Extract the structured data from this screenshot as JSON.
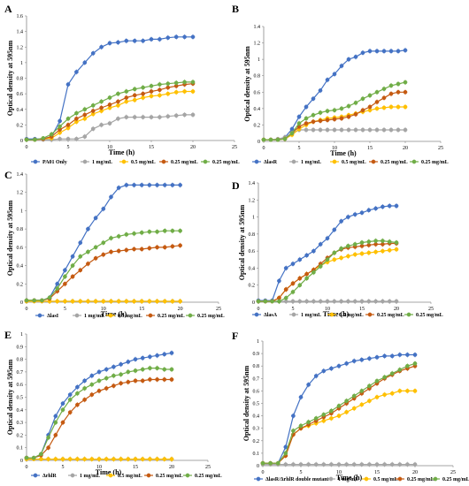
{
  "chart_data": [
    {
      "panel": "A",
      "type": "line",
      "xlabel": "Time (h)",
      "ylabel": "Optical density at 595nm",
      "xlim": [
        0,
        25
      ],
      "ylim": [
        0,
        1.6
      ],
      "xticks": [
        "0",
        "5",
        "10",
        "15",
        "20",
        "25"
      ],
      "yticks": [
        "0",
        "0.2",
        "0.4",
        "0.6",
        "0.8",
        "1",
        "1.2",
        "1.4",
        "1.6"
      ],
      "x": [
        0,
        1,
        2,
        3,
        4,
        5,
        6,
        7,
        8,
        9,
        10,
        11,
        12,
        13,
        14,
        15,
        16,
        17,
        18,
        19,
        20
      ],
      "series": [
        {
          "name": "PA01 Only",
          "color": "#4472c4",
          "values": [
            0.02,
            0.02,
            0.02,
            0.05,
            0.25,
            0.72,
            0.88,
            1.0,
            1.12,
            1.2,
            1.25,
            1.26,
            1.28,
            1.28,
            1.28,
            1.3,
            1.3,
            1.32,
            1.33,
            1.33,
            1.33
          ]
        },
        {
          "name": "1 mg/mL",
          "color": "#a5a5a5",
          "values": [
            0.01,
            0.01,
            0.01,
            0.01,
            0.02,
            0.02,
            0.02,
            0.05,
            0.15,
            0.2,
            0.22,
            0.28,
            0.3,
            0.3,
            0.3,
            0.3,
            0.3,
            0.31,
            0.32,
            0.33,
            0.33
          ]
        },
        {
          "name": "0.5 mg/mL",
          "color": "#ffc000",
          "values": [
            0.01,
            0.01,
            0.02,
            0.03,
            0.1,
            0.16,
            0.24,
            0.28,
            0.34,
            0.38,
            0.42,
            0.45,
            0.5,
            0.52,
            0.55,
            0.57,
            0.58,
            0.6,
            0.62,
            0.63,
            0.63
          ]
        },
        {
          "name": "0.25 mg/mL",
          "color": "#c55a11",
          "values": [
            0.01,
            0.01,
            0.02,
            0.05,
            0.14,
            0.2,
            0.28,
            0.33,
            0.38,
            0.42,
            0.46,
            0.5,
            0.55,
            0.58,
            0.6,
            0.63,
            0.65,
            0.68,
            0.7,
            0.72,
            0.73
          ]
        },
        {
          "name": "0.25 mg/mL",
          "color": "#70ad47",
          "values": [
            0.01,
            0.01,
            0.03,
            0.08,
            0.18,
            0.28,
            0.35,
            0.4,
            0.45,
            0.5,
            0.55,
            0.6,
            0.63,
            0.66,
            0.68,
            0.7,
            0.72,
            0.73,
            0.74,
            0.75,
            0.75
          ]
        }
      ]
    },
    {
      "panel": "B",
      "type": "line",
      "xlabel": "Time (h)",
      "ylabel": "Optical density at 595nm",
      "xlim": [
        0,
        25
      ],
      "ylim": [
        0,
        1.4
      ],
      "xticks": [
        "0",
        "5",
        "10",
        "15",
        "20",
        "25"
      ],
      "yticks": [
        "0",
        "0.2",
        "0.4",
        "0.6",
        "0.8",
        "1",
        "1.2",
        "1.4"
      ],
      "x": [
        0,
        1,
        2,
        3,
        4,
        5,
        6,
        7,
        8,
        9,
        10,
        11,
        12,
        13,
        14,
        15,
        16,
        17,
        18,
        19,
        20
      ],
      "series": [
        {
          "name": "ΔlasR",
          "color": "#4472c4",
          "values": [
            0.02,
            0.02,
            0.02,
            0.05,
            0.15,
            0.3,
            0.42,
            0.52,
            0.62,
            0.75,
            0.82,
            0.92,
            1.0,
            1.03,
            1.08,
            1.1,
            1.1,
            1.1,
            1.1,
            1.1,
            1.11
          ]
        },
        {
          "name": "1 mg/mL",
          "color": "#a5a5a5",
          "values": [
            0.02,
            0.02,
            0.03,
            0.05,
            0.1,
            0.14,
            0.14,
            0.14,
            0.14,
            0.14,
            0.14,
            0.14,
            0.14,
            0.14,
            0.14,
            0.14,
            0.14,
            0.14,
            0.14,
            0.14,
            0.14
          ]
        },
        {
          "name": "0.5 mg/mL",
          "color": "#ffc000",
          "values": [
            0.02,
            0.02,
            0.02,
            0.03,
            0.08,
            0.15,
            0.2,
            0.24,
            0.26,
            0.28,
            0.29,
            0.3,
            0.32,
            0.34,
            0.36,
            0.38,
            0.4,
            0.41,
            0.42,
            0.42,
            0.42
          ]
        },
        {
          "name": "0.25 mg/mL",
          "color": "#c55a11",
          "values": [
            0.02,
            0.02,
            0.02,
            0.03,
            0.1,
            0.18,
            0.22,
            0.24,
            0.25,
            0.26,
            0.27,
            0.28,
            0.3,
            0.33,
            0.38,
            0.42,
            0.48,
            0.53,
            0.58,
            0.6,
            0.6
          ]
        },
        {
          "name": "0.25 mg/mL",
          "color": "#70ad47",
          "values": [
            0.02,
            0.02,
            0.02,
            0.03,
            0.1,
            0.22,
            0.28,
            0.32,
            0.35,
            0.37,
            0.38,
            0.4,
            0.43,
            0.47,
            0.52,
            0.56,
            0.6,
            0.64,
            0.68,
            0.7,
            0.72
          ]
        }
      ]
    },
    {
      "panel": "C",
      "type": "line",
      "xlabel": "Time (h)",
      "ylabel": "Optical density at 595nm",
      "xlim": [
        0,
        25
      ],
      "ylim": [
        0,
        1.4
      ],
      "xticks": [
        "0",
        "5",
        "10",
        "15",
        "20",
        "25"
      ],
      "yticks": [
        "0",
        "0.2",
        "0.4",
        "0.6",
        "0.8",
        "1",
        "1.2",
        "1.4"
      ],
      "x": [
        0,
        1,
        2,
        3,
        4,
        5,
        6,
        7,
        8,
        9,
        10,
        11,
        12,
        13,
        14,
        15,
        16,
        17,
        18,
        19,
        20
      ],
      "series": [
        {
          "name": "ΔlasI",
          "color": "#4472c4",
          "values": [
            0.02,
            0.02,
            0.02,
            0.05,
            0.2,
            0.35,
            0.5,
            0.65,
            0.8,
            0.92,
            1.02,
            1.15,
            1.25,
            1.28,
            1.28,
            1.28,
            1.28,
            1.28,
            1.28,
            1.28,
            1.28
          ]
        },
        {
          "name": "1 mg/mL",
          "color": "#a5a5a5",
          "values": [
            0.01,
            0.01,
            0.01,
            0.01,
            0.01,
            0.01,
            0.01,
            0.01,
            0.01,
            0.01,
            0.01,
            0.01,
            0.01,
            0.01,
            0.01,
            0.01,
            0.01,
            0.01,
            0.01,
            0.01,
            0.01
          ]
        },
        {
          "name": "0.5 mg/mL",
          "color": "#ffc000",
          "values": [
            0.01,
            0.01,
            0.01,
            0.01,
            0.01,
            0.01,
            0.01,
            0.01,
            0.01,
            0.01,
            0.01,
            0.01,
            0.01,
            0.01,
            0.01,
            0.01,
            0.01,
            0.01,
            0.01,
            0.01,
            0.01
          ]
        },
        {
          "name": "0.25 mg/mL",
          "color": "#c55a11",
          "values": [
            0.02,
            0.02,
            0.02,
            0.04,
            0.12,
            0.2,
            0.28,
            0.35,
            0.42,
            0.48,
            0.52,
            0.55,
            0.56,
            0.57,
            0.58,
            0.58,
            0.59,
            0.6,
            0.6,
            0.61,
            0.62
          ]
        },
        {
          "name": "0.25 mg/mL",
          "color": "#70ad47",
          "values": [
            0.02,
            0.02,
            0.02,
            0.05,
            0.15,
            0.28,
            0.4,
            0.5,
            0.55,
            0.6,
            0.65,
            0.7,
            0.72,
            0.74,
            0.75,
            0.76,
            0.77,
            0.77,
            0.78,
            0.78,
            0.78
          ]
        }
      ]
    },
    {
      "panel": "D",
      "type": "line",
      "xlabel": "Time (h)",
      "ylabel": "Optical density at 595nm",
      "xlim": [
        0,
        25
      ],
      "ylim": [
        0,
        1.4
      ],
      "xticks": [
        "0",
        "5",
        "10",
        "15",
        "20",
        "25"
      ],
      "yticks": [
        "0",
        "0.2",
        "0.4",
        "0.6",
        "0.8",
        "1",
        "1.2",
        "1.4"
      ],
      "x": [
        0,
        1,
        2,
        3,
        4,
        5,
        6,
        7,
        8,
        9,
        10,
        11,
        12,
        13,
        14,
        15,
        16,
        17,
        18,
        19,
        20
      ],
      "series": [
        {
          "name": "ΔlasA",
          "color": "#4472c4",
          "values": [
            0.02,
            0.02,
            0.02,
            0.25,
            0.4,
            0.45,
            0.5,
            0.55,
            0.6,
            0.68,
            0.75,
            0.85,
            0.95,
            1.0,
            1.03,
            1.05,
            1.08,
            1.1,
            1.12,
            1.13,
            1.13
          ]
        },
        {
          "name": "1 mg/mL",
          "color": "#a5a5a5",
          "values": [
            0.01,
            0.01,
            0.01,
            0.01,
            0.01,
            0.01,
            0.01,
            0.01,
            0.01,
            0.01,
            0.01,
            0.01,
            0.01,
            0.01,
            0.01,
            0.01,
            0.01,
            0.01,
            0.01,
            0.01,
            0.01
          ]
        },
        {
          "name": "0.5 mg/mL",
          "color": "#ffc000",
          "values": [
            0.01,
            0.01,
            0.01,
            0.05,
            0.15,
            0.22,
            0.28,
            0.33,
            0.38,
            0.43,
            0.47,
            0.5,
            0.52,
            0.54,
            0.56,
            0.57,
            0.58,
            0.59,
            0.6,
            0.61,
            0.62
          ]
        },
        {
          "name": "0.25 mg/mL",
          "color": "#c55a11",
          "values": [
            0.01,
            0.01,
            0.01,
            0.05,
            0.15,
            0.22,
            0.28,
            0.33,
            0.38,
            0.45,
            0.52,
            0.58,
            0.62,
            0.64,
            0.65,
            0.66,
            0.67,
            0.68,
            0.68,
            0.69,
            0.69
          ]
        },
        {
          "name": "0.25 mg/mL",
          "color": "#70ad47",
          "values": [
            0.01,
            0.01,
            0.01,
            0.01,
            0.05,
            0.12,
            0.2,
            0.28,
            0.35,
            0.42,
            0.5,
            0.58,
            0.63,
            0.66,
            0.68,
            0.7,
            0.71,
            0.72,
            0.72,
            0.71,
            0.7
          ]
        }
      ]
    },
    {
      "panel": "E",
      "type": "line",
      "xlabel": "Time (h)",
      "ylabel": "Optical density at 595nm",
      "xlim": [
        0,
        25
      ],
      "ylim": [
        0,
        1
      ],
      "xticks": [
        "0",
        "5",
        "10",
        "15",
        "20",
        "25"
      ],
      "yticks": [
        "0",
        "0.1",
        "0.2",
        "0.3",
        "0.4",
        "0.5",
        "0.6",
        "0.7",
        "0.8",
        "0.9",
        "1"
      ],
      "x": [
        0,
        1,
        2,
        3,
        4,
        5,
        6,
        7,
        8,
        9,
        10,
        11,
        12,
        13,
        14,
        15,
        16,
        17,
        18,
        19,
        20
      ],
      "series": [
        {
          "name": "ΔrhlR",
          "color": "#4472c4",
          "values": [
            0.02,
            0.02,
            0.05,
            0.2,
            0.35,
            0.45,
            0.52,
            0.58,
            0.63,
            0.67,
            0.7,
            0.72,
            0.74,
            0.76,
            0.78,
            0.8,
            0.81,
            0.82,
            0.83,
            0.84,
            0.85
          ]
        },
        {
          "name": "1 mg/mL",
          "color": "#a5a5a5",
          "values": [
            0.01,
            0.01,
            0.01,
            0.01,
            0.01,
            0.01,
            0.01,
            0.01,
            0.01,
            0.01,
            0.01,
            0.01,
            0.01,
            0.01,
            0.01,
            0.01,
            0.01,
            0.01,
            0.01,
            0.01,
            0.01
          ]
        },
        {
          "name": "0.5 mg/mL",
          "color": "#ffc000",
          "values": [
            0.01,
            0.01,
            0.01,
            0.01,
            0.01,
            0.01,
            0.01,
            0.01,
            0.01,
            0.01,
            0.01,
            0.01,
            0.01,
            0.01,
            0.01,
            0.01,
            0.01,
            0.01,
            0.01,
            0.01,
            0.01
          ]
        },
        {
          "name": "0.25 mg/mL",
          "color": "#c55a11",
          "values": [
            0.02,
            0.02,
            0.04,
            0.1,
            0.2,
            0.3,
            0.38,
            0.44,
            0.48,
            0.52,
            0.55,
            0.57,
            0.59,
            0.61,
            0.62,
            0.63,
            0.63,
            0.64,
            0.64,
            0.64,
            0.64
          ]
        },
        {
          "name": "0.25 mg/mL",
          "color": "#70ad47",
          "values": [
            0.02,
            0.02,
            0.05,
            0.18,
            0.3,
            0.4,
            0.48,
            0.53,
            0.57,
            0.6,
            0.63,
            0.65,
            0.67,
            0.68,
            0.7,
            0.71,
            0.72,
            0.73,
            0.73,
            0.72,
            0.72
          ]
        }
      ]
    },
    {
      "panel": "F",
      "type": "line",
      "xlabel": "Time (h)",
      "ylabel": "Optical density at 595nm",
      "xlim": [
        0,
        25
      ],
      "ylim": [
        0,
        1
      ],
      "xticks": [
        "0",
        "5",
        "10",
        "15",
        "20",
        "25"
      ],
      "yticks": [
        "0",
        "0.1",
        "0.2",
        "0.3",
        "0.4",
        "0.5",
        "0.6",
        "0.7",
        "0.8",
        "0.9",
        "1"
      ],
      "x": [
        0,
        1,
        2,
        3,
        4,
        5,
        6,
        7,
        8,
        9,
        10,
        11,
        12,
        13,
        14,
        15,
        16,
        17,
        18,
        19,
        20
      ],
      "series": [
        {
          "name": "ΔlasR/ΔrhlR double mutant",
          "color": "#4472c4",
          "values": [
            0.02,
            0.02,
            0.02,
            0.15,
            0.4,
            0.55,
            0.65,
            0.72,
            0.76,
            0.78,
            0.8,
            0.82,
            0.84,
            0.85,
            0.86,
            0.87,
            0.88,
            0.88,
            0.89,
            0.89,
            0.89
          ]
        },
        {
          "name": "1 mg/mL",
          "color": "#a5a5a5",
          "values": [
            0.01,
            0.01,
            0.01,
            0.01,
            0.01,
            0.01,
            0.01,
            0.01,
            0.01,
            0.01,
            0.01,
            0.01,
            0.01,
            0.01,
            0.01,
            0.01,
            0.01,
            0.01,
            0.01,
            0.01,
            0.01
          ]
        },
        {
          "name": "0.5 mg/mL",
          "color": "#ffc000",
          "values": [
            0.02,
            0.02,
            0.02,
            0.08,
            0.25,
            0.3,
            0.32,
            0.34,
            0.36,
            0.38,
            0.4,
            0.43,
            0.46,
            0.49,
            0.52,
            0.55,
            0.57,
            0.58,
            0.6,
            0.6,
            0.6
          ]
        },
        {
          "name": "0.25 mg/mL",
          "color": "#c55a11",
          "values": [
            0.02,
            0.02,
            0.02,
            0.08,
            0.25,
            0.3,
            0.33,
            0.36,
            0.39,
            0.42,
            0.46,
            0.5,
            0.54,
            0.58,
            0.62,
            0.66,
            0.7,
            0.73,
            0.76,
            0.78,
            0.8
          ]
        },
        {
          "name": "0.25 mg/mL",
          "color": "#70ad47",
          "values": [
            0.02,
            0.02,
            0.02,
            0.1,
            0.28,
            0.32,
            0.35,
            0.38,
            0.41,
            0.44,
            0.48,
            0.52,
            0.56,
            0.6,
            0.64,
            0.68,
            0.71,
            0.74,
            0.77,
            0.8,
            0.82
          ]
        }
      ]
    }
  ]
}
